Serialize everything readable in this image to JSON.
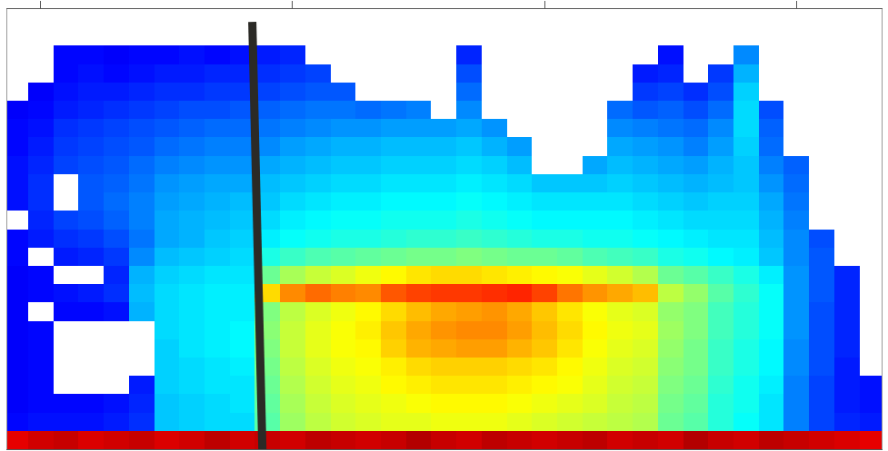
{
  "chart_data": {
    "type": "heatmap",
    "x": [
      9,
      10,
      11,
      12,
      13,
      14,
      15,
      16,
      17,
      18,
      19,
      20,
      21,
      22,
      23,
      24,
      25,
      26,
      27,
      28,
      29,
      30,
      31,
      32,
      33,
      34,
      35,
      36,
      37,
      38,
      39,
      40,
      41,
      42,
      43
    ],
    "y": [
      0.5,
      1.5,
      2.5,
      3.5,
      4.5,
      5.5,
      6.5,
      7.5,
      8.5,
      9.5,
      10.5,
      11.5,
      12.5,
      13.5,
      14.5,
      15.5,
      16.5,
      17.5,
      18.5,
      19.5,
      20.5,
      21.5,
      22.5,
      23.5
    ],
    "z": [
      [
        9.0,
        9.2,
        9.3,
        9.1,
        9.2,
        9.3,
        9.1,
        9.2,
        9.4,
        9.2,
        9.3,
        9.2,
        9.4,
        9.3,
        9.2,
        9.3,
        9.5,
        9.3,
        9.2,
        9.4,
        9.3,
        9.2,
        9.3,
        9.4,
        9.2,
        9.3,
        9.2,
        9.5,
        9.3,
        9.2,
        9.4,
        9.3,
        9.2,
        9.1,
        9.0
      ],
      [
        1.3,
        1.4,
        1.4,
        1.4,
        1.5,
        1.7,
        3.2,
        3.3,
        3.4,
        3.4,
        4.6,
        5.3,
        5.6,
        5.8,
        5.9,
        6.0,
        6.0,
        6.1,
        6.1,
        6.1,
        6.0,
        5.9,
        5.8,
        5.7,
        5.6,
        5.5,
        4.8,
        4.6,
        4.1,
        3.8,
        3.5,
        2.5,
        1.9,
        1.6,
        1.5
      ],
      [
        1.2,
        1.3,
        1.3,
        1.3,
        1.4,
        1.6,
        3.2,
        3.3,
        3.4,
        3.5,
        4.7,
        5.4,
        5.7,
        5.9,
        6.0,
        6.1,
        6.2,
        6.3,
        6.3,
        6.3,
        6.2,
        6.1,
        6.0,
        5.9,
        5.7,
        5.6,
        4.9,
        4.7,
        4.1,
        3.9,
        3.5,
        2.5,
        1.9,
        1.5,
        1.4
      ],
      [
        1.2,
        1.3,
        null,
        null,
        null,
        1.5,
        3.3,
        3.4,
        3.5,
        3.5,
        4.8,
        5.5,
        5.8,
        6.0,
        6.1,
        6.3,
        6.4,
        6.5,
        6.5,
        6.5,
        6.4,
        6.3,
        6.2,
        6.0,
        5.8,
        5.7,
        5.0,
        4.8,
        4.2,
        3.9,
        3.6,
        2.5,
        1.9,
        1.5,
        1.4
      ],
      [
        1.2,
        1.3,
        null,
        null,
        null,
        null,
        3.3,
        3.4,
        3.5,
        3.6,
        4.9,
        5.6,
        5.9,
        6.1,
        6.2,
        6.4,
        6.6,
        6.7,
        6.7,
        6.7,
        6.6,
        6.5,
        6.3,
        6.1,
        5.9,
        5.8,
        5.1,
        4.9,
        4.3,
        4.0,
        3.7,
        2.6,
        2.0,
        1.5,
        null
      ],
      [
        1.2,
        1.3,
        null,
        null,
        null,
        null,
        3.3,
        3.5,
        3.6,
        3.7,
        5.0,
        5.7,
        6.0,
        6.2,
        6.3,
        6.7,
        7.0,
        7.1,
        7.2,
        7.2,
        7.0,
        6.8,
        6.5,
        6.2,
        6.0,
        5.9,
        5.2,
        4.9,
        4.3,
        4.0,
        3.7,
        2.6,
        2.0,
        1.6,
        null
      ],
      [
        1.2,
        1.3,
        null,
        null,
        null,
        null,
        3.4,
        3.5,
        3.6,
        3.7,
        5.1,
        5.7,
        6.0,
        6.2,
        6.4,
        6.8,
        7.1,
        7.3,
        7.4,
        7.4,
        7.2,
        6.9,
        6.6,
        6.3,
        6.1,
        6.0,
        5.3,
        5.0,
        4.4,
        4.1,
        3.8,
        2.7,
        2.0,
        1.6,
        null
      ],
      [
        1.2,
        null,
        1.3,
        1.3,
        1.4,
        3.0,
        3.4,
        3.5,
        3.6,
        3.6,
        5.0,
        5.6,
        5.9,
        6.1,
        6.3,
        6.6,
        6.9,
        7.1,
        7.2,
        7.3,
        7.1,
        6.8,
        6.5,
        6.2,
        6.0,
        5.9,
        5.2,
        5.0,
        4.4,
        4.1,
        3.8,
        2.7,
        2.0,
        1.6,
        null
      ],
      [
        1.2,
        1.3,
        1.4,
        1.5,
        1.7,
        3.1,
        3.4,
        3.5,
        3.6,
        3.6,
        6.6,
        7.4,
        7.7,
        7.5,
        7.4,
        7.9,
        8.1,
        8.2,
        8.2,
        8.3,
        8.4,
        8.1,
        7.6,
        7.3,
        7.1,
        6.9,
        5.6,
        5.2,
        4.6,
        4.2,
        3.8,
        2.7,
        2.1,
        1.6,
        null
      ],
      [
        1.2,
        1.3,
        null,
        null,
        1.6,
        3.0,
        3.3,
        3.4,
        3.5,
        3.5,
        4.8,
        5.4,
        5.7,
        5.9,
        6.1,
        6.3,
        6.5,
        6.6,
        6.6,
        6.5,
        6.4,
        6.3,
        6.2,
        6.0,
        5.8,
        5.5,
        4.8,
        4.6,
        4.3,
        4.0,
        3.6,
        2.7,
        2.1,
        1.6,
        null
      ],
      [
        1.3,
        null,
        1.5,
        1.6,
        1.8,
        2.6,
        3.1,
        3.2,
        3.3,
        3.4,
        4.0,
        4.3,
        4.5,
        4.6,
        4.7,
        4.8,
        4.9,
        4.9,
        5.0,
        4.9,
        4.8,
        4.8,
        4.7,
        4.5,
        4.4,
        4.3,
        4.0,
        3.9,
        3.7,
        3.6,
        3.2,
        2.6,
        2.1,
        null,
        null
      ],
      [
        1.3,
        1.5,
        1.7,
        1.8,
        2.0,
        2.4,
        2.9,
        3.0,
        3.2,
        3.3,
        3.6,
        3.8,
        3.9,
        4.0,
        4.0,
        4.1,
        4.2,
        4.2,
        4.3,
        4.2,
        4.1,
        4.0,
        4.0,
        3.9,
        3.9,
        3.8,
        3.7,
        3.6,
        3.5,
        3.5,
        3.1,
        2.6,
        2.0,
        null,
        null
      ],
      [
        null,
        1.6,
        1.9,
        2.0,
        2.2,
        2.5,
        2.9,
        3.0,
        3.1,
        3.2,
        3.4,
        3.6,
        3.7,
        3.8,
        3.8,
        3.9,
        3.9,
        3.9,
        4.0,
        3.9,
        3.8,
        3.7,
        3.7,
        3.7,
        3.7,
        3.6,
        3.5,
        3.4,
        3.4,
        3.4,
        3.0,
        2.5,
        null,
        null,
        null
      ],
      [
        1.4,
        1.7,
        null,
        2.1,
        2.3,
        2.5,
        2.8,
        2.9,
        3.0,
        3.1,
        3.2,
        3.4,
        3.5,
        3.6,
        3.6,
        3.7,
        3.7,
        3.7,
        3.8,
        3.7,
        3.6,
        3.5,
        3.5,
        3.5,
        3.5,
        3.4,
        3.3,
        3.2,
        3.3,
        3.3,
        2.9,
        2.4,
        null,
        null,
        null
      ],
      [
        1.4,
        1.7,
        null,
        2.1,
        2.2,
        2.4,
        2.7,
        2.8,
        2.9,
        2.9,
        3.1,
        3.2,
        3.3,
        3.4,
        3.4,
        3.5,
        3.5,
        3.5,
        3.6,
        3.5,
        3.4,
        3.2,
        3.2,
        3.2,
        3.3,
        3.2,
        3.1,
        3.0,
        3.1,
        3.2,
        2.7,
        2.3,
        null,
        null,
        null
      ],
      [
        1.4,
        1.6,
        1.9,
        2.0,
        2.1,
        2.3,
        2.5,
        2.6,
        2.7,
        2.7,
        2.9,
        3.0,
        3.1,
        3.2,
        3.2,
        3.3,
        3.3,
        3.3,
        3.4,
        3.3,
        3.1,
        null,
        null,
        2.9,
        3.1,
        3.0,
        2.9,
        2.8,
        3.0,
        3.2,
        2.5,
        2.2,
        null,
        null,
        null
      ],
      [
        1.3,
        1.5,
        1.8,
        1.9,
        2.0,
        2.1,
        2.3,
        2.4,
        2.5,
        2.5,
        2.6,
        2.8,
        2.9,
        3.0,
        3.0,
        3.1,
        3.1,
        3.1,
        3.2,
        3.0,
        2.8,
        null,
        null,
        null,
        2.9,
        2.8,
        2.7,
        2.5,
        2.8,
        3.3,
        2.3,
        null,
        null,
        null,
        null
      ],
      [
        1.3,
        1.4,
        1.7,
        1.8,
        1.9,
        2.0,
        2.1,
        2.2,
        2.3,
        2.3,
        2.4,
        2.5,
        2.6,
        2.7,
        2.7,
        2.8,
        2.8,
        2.8,
        2.9,
        2.7,
        null,
        null,
        null,
        null,
        2.6,
        2.5,
        2.4,
        2.3,
        2.6,
        3.4,
        2.2,
        null,
        null,
        null,
        null
      ],
      [
        1.2,
        1.3,
        1.5,
        1.6,
        1.7,
        1.8,
        1.9,
        2.0,
        2.0,
        2.1,
        2.2,
        2.3,
        2.4,
        2.4,
        2.3,
        2.4,
        2.5,
        null,
        2.6,
        null,
        null,
        null,
        null,
        null,
        2.3,
        2.1,
        2.2,
        2.0,
        2.3,
        3.4,
        2.0,
        null,
        null,
        null,
        null
      ],
      [
        null,
        1.2,
        1.4,
        1.5,
        1.5,
        1.6,
        1.7,
        1.7,
        1.8,
        1.8,
        1.9,
        2.0,
        2.1,
        2.1,
        null,
        null,
        null,
        null,
        2.3,
        null,
        null,
        null,
        null,
        null,
        null,
        1.8,
        1.9,
        1.7,
        2.0,
        3.3,
        null,
        null,
        null,
        null,
        null
      ],
      [
        null,
        null,
        1.3,
        1.4,
        1.3,
        1.4,
        1.5,
        1.5,
        1.6,
        1.6,
        1.7,
        1.8,
        1.9,
        null,
        null,
        null,
        null,
        null,
        2.0,
        null,
        null,
        null,
        null,
        null,
        null,
        1.5,
        1.6,
        null,
        1.8,
        3.0,
        null,
        null,
        null,
        null,
        null
      ],
      [
        null,
        null,
        1.3,
        1.3,
        1.2,
        1.3,
        1.3,
        1.4,
        1.3,
        1.4,
        1.5,
        1.6,
        null,
        null,
        null,
        null,
        null,
        null,
        1.6,
        null,
        null,
        null,
        null,
        null,
        null,
        null,
        1.4,
        null,
        null,
        2.6,
        null,
        null,
        null,
        null,
        null
      ],
      [
        null,
        null,
        null,
        null,
        null,
        null,
        null,
        null,
        null,
        null,
        null,
        null,
        null,
        null,
        null,
        null,
        null,
        null,
        null,
        null,
        null,
        null,
        null,
        null,
        null,
        null,
        null,
        null,
        null,
        null,
        null,
        null,
        null,
        null,
        null
      ],
      [
        null,
        null,
        null,
        null,
        null,
        null,
        null,
        null,
        null,
        null,
        null,
        null,
        null,
        null,
        null,
        null,
        null,
        null,
        null,
        null,
        null,
        null,
        null,
        null,
        null,
        null,
        null,
        null,
        null,
        null,
        null,
        null,
        null,
        null,
        null
      ]
    ],
    "zlim": [
      0,
      10
    ],
    "xlim": [
      8.67,
      43.39
    ],
    "xticks": [
      10,
      20,
      30,
      40
    ],
    "ylim": [
      0,
      24
    ],
    "yticks": [],
    "tick_labels": false,
    "event_line": {
      "x": [
        18.4,
        18.8
      ],
      "y": [
        23.3,
        0
      ],
      "color": "#2b2a26"
    }
  }
}
